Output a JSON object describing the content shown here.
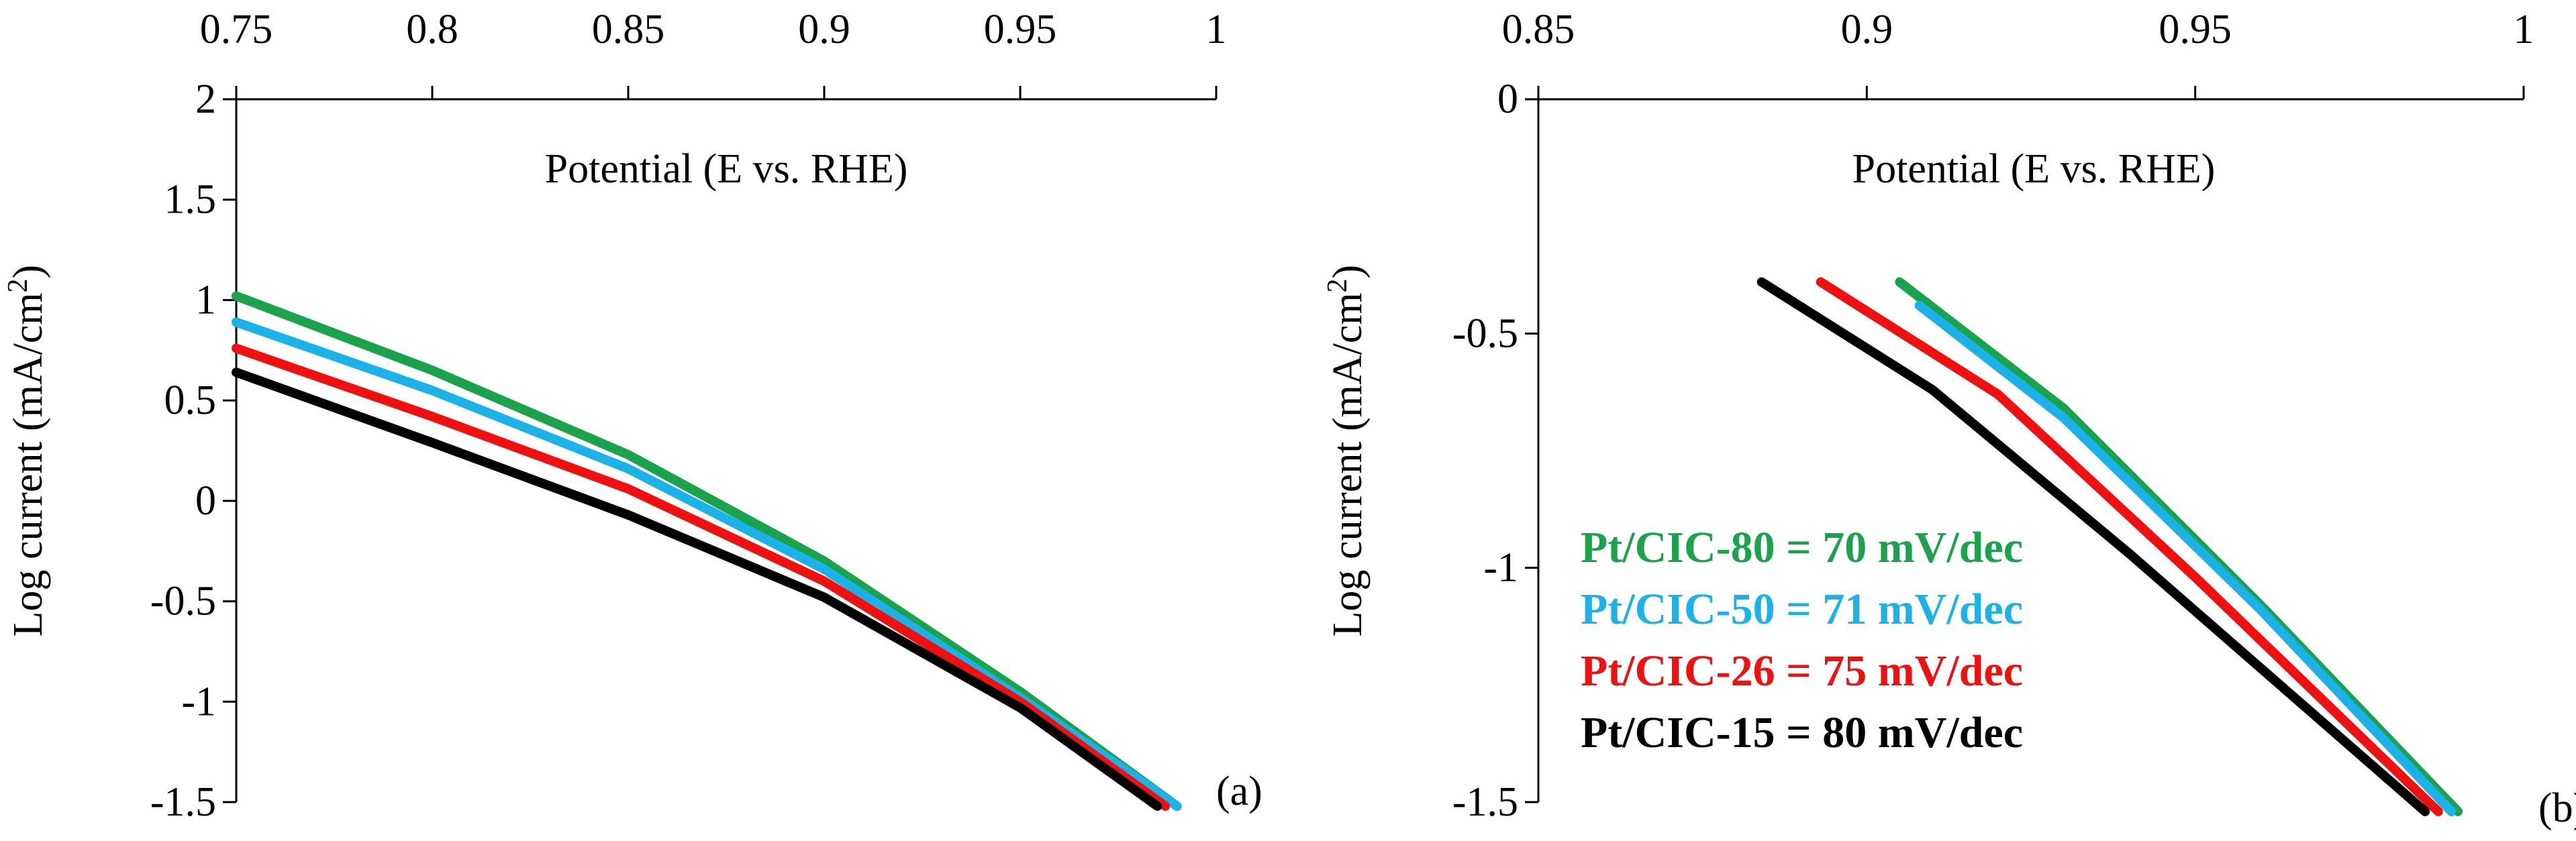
{
  "chart_data": [
    {
      "id": "a",
      "type": "line",
      "panel_label": "(a)",
      "xlabel": "Potential (E vs. RHE)",
      "ylabel": "Log current (mA/cm",
      "ylabel_sup": "2",
      "ylabel_end": ")",
      "xlim": [
        0.75,
        1.0
      ],
      "ylim": [
        -1.5,
        2.0
      ],
      "x_ticks": [
        0.75,
        0.8,
        0.85,
        0.9,
        0.95,
        1.0
      ],
      "x_tick_labels": [
        "0.75",
        "0.8",
        "0.85",
        "0.9",
        "0.95",
        "1"
      ],
      "y_ticks": [
        -1.5,
        -1.0,
        -0.5,
        0,
        0.5,
        1.0,
        1.5,
        2.0
      ],
      "y_tick_labels": [
        "-1.5",
        "-1",
        "-0.5",
        "0",
        "0.5",
        "1",
        "1.5",
        "2"
      ],
      "x_axis_position": "top",
      "grid": false,
      "series": [
        {
          "name": "Pt/CIC-80",
          "color": "#1aa34a",
          "x": [
            0.75,
            0.8,
            0.85,
            0.9,
            0.95,
            0.99
          ],
          "y": [
            1.02,
            0.65,
            0.23,
            -0.3,
            -0.95,
            -1.52
          ]
        },
        {
          "name": "Pt/CIC-50",
          "color": "#1ab2e8",
          "x": [
            0.75,
            0.8,
            0.85,
            0.9,
            0.95,
            0.99
          ],
          "y": [
            0.89,
            0.55,
            0.16,
            -0.34,
            -0.98,
            -1.52
          ]
        },
        {
          "name": "Pt/CIC-26",
          "color": "#f01010",
          "x": [
            0.75,
            0.8,
            0.85,
            0.9,
            0.95,
            0.987
          ],
          "y": [
            0.76,
            0.42,
            0.06,
            -0.4,
            -1.0,
            -1.52
          ]
        },
        {
          "name": "Pt/CIC-15",
          "color": "#000000",
          "x": [
            0.75,
            0.8,
            0.85,
            0.9,
            0.95,
            0.985
          ],
          "y": [
            0.64,
            0.29,
            -0.07,
            -0.48,
            -1.03,
            -1.52
          ]
        }
      ]
    },
    {
      "id": "b",
      "type": "line",
      "panel_label": "(b)",
      "xlabel": "Potential (E vs. RHE)",
      "ylabel": "Log current (mA/cm",
      "ylabel_sup": "2",
      "ylabel_end": ")",
      "xlim": [
        0.85,
        1.0
      ],
      "ylim": [
        -1.5,
        0
      ],
      "x_ticks": [
        0.85,
        0.9,
        0.95,
        1.0
      ],
      "x_tick_labels": [
        "0.85",
        "0.9",
        "0.95",
        "1"
      ],
      "y_ticks": [
        -1.5,
        -1.0,
        -0.5,
        0
      ],
      "y_tick_labels": [
        "-1.5",
        "-1",
        "-0.5",
        "0"
      ],
      "x_axis_position": "top",
      "grid": false,
      "legend": [
        {
          "text": "Pt/CIC-80 = 70 mV/dec",
          "color": "#1aa34a"
        },
        {
          "text": "Pt/CIC-50 = 71 mV/dec",
          "color": "#1ab2e8"
        },
        {
          "text": "Pt/CIC-26 = 75 mV/dec",
          "color": "#f01010"
        },
        {
          "text": "Pt/CIC-15 = 80 mV/dec",
          "color": "#000000"
        }
      ],
      "legend_position": "left",
      "series": [
        {
          "name": "Pt/CIC-80",
          "color": "#1aa34a",
          "x": [
            0.905,
            0.93,
            0.96,
            0.99
          ],
          "y": [
            -0.39,
            -0.66,
            -1.08,
            -1.52
          ]
        },
        {
          "name": "Pt/CIC-50",
          "color": "#1ab2e8",
          "x": [
            0.908,
            0.93,
            0.96,
            0.989
          ],
          "y": [
            -0.44,
            -0.68,
            -1.09,
            -1.52
          ]
        },
        {
          "name": "Pt/CIC-26",
          "color": "#f01010",
          "x": [
            0.893,
            0.92,
            0.95,
            0.987
          ],
          "y": [
            -0.39,
            -0.63,
            -1.02,
            -1.52
          ]
        },
        {
          "name": "Pt/CIC-15",
          "color": "#000000",
          "x": [
            0.884,
            0.91,
            0.94,
            0.985
          ],
          "y": [
            -0.39,
            -0.62,
            -0.97,
            -1.52
          ]
        }
      ]
    }
  ]
}
